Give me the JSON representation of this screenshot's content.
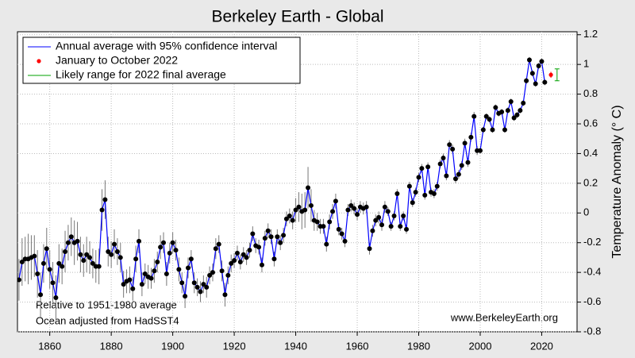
{
  "chart_data": {
    "type": "line",
    "title": "Berkeley Earth - Global",
    "y_label": "Temperature Anomaly (° C)",
    "annotations": [
      "Relative to 1951-1980 average",
      "Ocean adjusted from HadSST4",
      "www.BerkeleyEarth.org"
    ],
    "xlim": [
      1849.5,
      2031.5
    ],
    "ylim": [
      -0.8,
      1.22
    ],
    "xticks": [
      1860,
      1880,
      1900,
      1920,
      1940,
      1960,
      1980,
      2000,
      2020
    ],
    "yticks": [
      -0.8,
      -0.6,
      -0.4,
      -0.2,
      0,
      0.2,
      0.4,
      0.6,
      0.8,
      1,
      1.2
    ],
    "grid": true,
    "legend": "upper left",
    "series": [
      {
        "name": "Annual average with 95% confidence interval",
        "color": "#0000ff",
        "marker_color": "#000000",
        "x": [
          1850,
          1851,
          1852,
          1853,
          1854,
          1855,
          1856,
          1857,
          1858,
          1859,
          1860,
          1861,
          1862,
          1863,
          1864,
          1865,
          1866,
          1867,
          1868,
          1869,
          1870,
          1871,
          1872,
          1873,
          1874,
          1875,
          1876,
          1877,
          1878,
          1879,
          1880,
          1881,
          1882,
          1883,
          1884,
          1885,
          1886,
          1887,
          1888,
          1889,
          1890,
          1891,
          1892,
          1893,
          1894,
          1895,
          1896,
          1897,
          1898,
          1899,
          1900,
          1901,
          1902,
          1903,
          1904,
          1905,
          1906,
          1907,
          1908,
          1909,
          1910,
          1911,
          1912,
          1913,
          1914,
          1915,
          1916,
          1917,
          1918,
          1919,
          1920,
          1921,
          1922,
          1923,
          1924,
          1925,
          1926,
          1927,
          1928,
          1929,
          1930,
          1931,
          1932,
          1933,
          1934,
          1935,
          1936,
          1937,
          1938,
          1939,
          1940,
          1941,
          1942,
          1943,
          1944,
          1945,
          1946,
          1947,
          1948,
          1949,
          1950,
          1951,
          1952,
          1953,
          1954,
          1955,
          1956,
          1957,
          1958,
          1959,
          1960,
          1961,
          1962,
          1963,
          1964,
          1965,
          1966,
          1967,
          1968,
          1969,
          1970,
          1971,
          1972,
          1973,
          1974,
          1975,
          1976,
          1977,
          1978,
          1979,
          1980,
          1981,
          1982,
          1983,
          1984,
          1985,
          1986,
          1987,
          1988,
          1989,
          1990,
          1991,
          1992,
          1993,
          1994,
          1995,
          1996,
          1997,
          1998,
          1999,
          2000,
          2001,
          2002,
          2003,
          2004,
          2005,
          2006,
          2007,
          2008,
          2009,
          2010,
          2011,
          2012,
          2013,
          2014,
          2015,
          2016,
          2017,
          2018,
          2019,
          2020,
          2021
        ],
        "values": [
          -0.45,
          -0.33,
          -0.31,
          -0.31,
          -0.3,
          -0.29,
          -0.41,
          -0.55,
          -0.34,
          -0.24,
          -0.38,
          -0.47,
          -0.57,
          -0.34,
          -0.36,
          -0.26,
          -0.2,
          -0.16,
          -0.2,
          -0.19,
          -0.28,
          -0.32,
          -0.28,
          -0.3,
          -0.34,
          -0.36,
          -0.36,
          0.02,
          0.09,
          -0.26,
          -0.28,
          -0.21,
          -0.26,
          -0.3,
          -0.48,
          -0.46,
          -0.45,
          -0.51,
          -0.31,
          -0.19,
          -0.48,
          -0.41,
          -0.43,
          -0.44,
          -0.39,
          -0.33,
          -0.23,
          -0.2,
          -0.41,
          -0.27,
          -0.2,
          -0.25,
          -0.38,
          -0.47,
          -0.56,
          -0.37,
          -0.31,
          -0.47,
          -0.5,
          -0.53,
          -0.48,
          -0.5,
          -0.42,
          -0.4,
          -0.24,
          -0.21,
          -0.39,
          -0.55,
          -0.42,
          -0.34,
          -0.32,
          -0.27,
          -0.33,
          -0.28,
          -0.3,
          -0.25,
          -0.14,
          -0.22,
          -0.23,
          -0.35,
          -0.17,
          -0.12,
          -0.16,
          -0.31,
          -0.16,
          -0.2,
          -0.15,
          -0.04,
          -0.02,
          -0.05,
          0.02,
          0.04,
          0.01,
          0.02,
          0.17,
          0.05,
          -0.05,
          -0.06,
          -0.09,
          -0.09,
          -0.21,
          -0.06,
          0.01,
          0.08,
          -0.11,
          -0.14,
          -0.19,
          0.02,
          0.05,
          0.03,
          -0.01,
          0.04,
          0.03,
          0.04,
          -0.24,
          -0.12,
          -0.05,
          -0.03,
          -0.08,
          0.04,
          0.01,
          -0.09,
          -0.02,
          0.13,
          -0.09,
          -0.02,
          -0.11,
          0.18,
          0.07,
          0.14,
          0.24,
          0.3,
          0.12,
          0.31,
          0.14,
          0.13,
          0.18,
          0.33,
          0.37,
          0.25,
          0.46,
          0.43,
          0.23,
          0.26,
          0.32,
          0.47,
          0.34,
          0.51,
          0.65,
          0.42,
          0.42,
          0.56,
          0.65,
          0.63,
          0.56,
          0.71,
          0.67,
          0.68,
          0.56,
          0.69,
          0.75,
          0.64,
          0.66,
          0.69,
          0.74,
          0.89,
          1.03,
          0.94,
          0.87,
          0.99,
          1.02,
          0.88
        ],
        "errors": [
          0.14,
          0.16,
          0.15,
          0.17,
          0.15,
          0.14,
          0.16,
          0.15,
          0.13,
          0.14,
          0.13,
          0.14,
          0.15,
          0.13,
          0.12,
          0.14,
          0.12,
          0.13,
          0.15,
          0.13,
          0.12,
          0.11,
          0.12,
          0.11,
          0.1,
          0.11,
          0.12,
          0.14,
          0.13,
          0.1,
          0.09,
          0.1,
          0.09,
          0.1,
          0.09,
          0.08,
          0.09,
          0.08,
          0.09,
          0.08,
          0.08,
          0.07,
          0.08,
          0.07,
          0.08,
          0.07,
          0.08,
          0.07,
          0.08,
          0.07,
          0.07,
          0.07,
          0.08,
          0.07,
          0.08,
          0.07,
          0.06,
          0.07,
          0.06,
          0.07,
          0.06,
          0.07,
          0.06,
          0.06,
          0.07,
          0.06,
          0.07,
          0.08,
          0.06,
          0.06,
          0.05,
          0.05,
          0.05,
          0.05,
          0.05,
          0.05,
          0.05,
          0.05,
          0.05,
          0.05,
          0.05,
          0.05,
          0.05,
          0.05,
          0.05,
          0.05,
          0.05,
          0.05,
          0.05,
          0.06,
          0.08,
          0.1,
          0.12,
          0.12,
          0.14,
          0.11,
          0.07,
          0.06,
          0.05,
          0.05,
          0.05,
          0.05,
          0.05,
          0.05,
          0.04,
          0.04,
          0.04,
          0.04,
          0.04,
          0.04,
          0.04,
          0.04,
          0.04,
          0.04,
          0.04,
          0.04,
          0.04,
          0.04,
          0.04,
          0.04,
          0.03,
          0.03,
          0.03,
          0.03,
          0.03,
          0.03,
          0.03,
          0.03,
          0.03,
          0.03,
          0.03,
          0.03,
          0.03,
          0.03,
          0.03,
          0.03,
          0.03,
          0.03,
          0.03,
          0.03,
          0.03,
          0.03,
          0.03,
          0.03,
          0.03,
          0.03,
          0.03,
          0.03,
          0.03,
          0.03,
          0.02,
          0.02,
          0.02,
          0.02,
          0.02,
          0.02,
          0.02,
          0.02,
          0.02,
          0.02,
          0.02,
          0.02,
          0.02,
          0.02,
          0.02,
          0.02,
          0.02,
          0.02,
          0.02,
          0.02,
          0.02,
          0.02
        ]
      },
      {
        "name": "January to October 2022",
        "color": "#ff0000",
        "x": [
          2023
        ],
        "values": [
          0.93
        ],
        "errors": [
          0.02
        ]
      },
      {
        "name": "Likely range for 2022 final average",
        "color": "#00a000",
        "x": [
          2025
        ],
        "low": [
          0.89
        ],
        "high": [
          0.97
        ]
      }
    ]
  }
}
